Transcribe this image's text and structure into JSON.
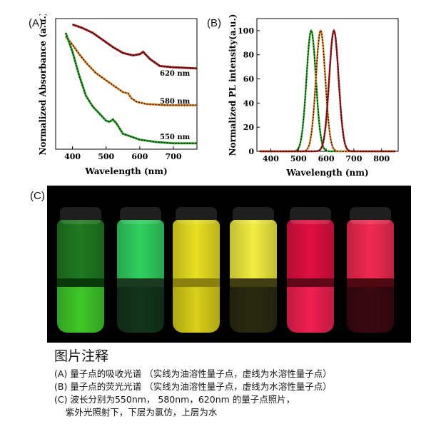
{
  "panels": {
    "a": "(A)",
    "b": "(B)",
    "c": "(C)"
  },
  "chart_data": [
    {
      "type": "line",
      "xlabel": "Wavelength (nm)",
      "ylabel": "Normalized Absorbance (a.u.)",
      "xlim": [
        350,
        770
      ],
      "xticks": [
        "400",
        "500",
        "600",
        "700"
      ],
      "annotations": [
        "620 nm",
        "580 nm",
        "550 nm"
      ],
      "series": [
        {
          "color": "#b01818",
          "x": [
            400,
            430,
            460,
            490,
            520,
            550,
            580,
            600,
            610,
            630,
            660,
            700,
            770
          ],
          "y": [
            1.05,
            1.02,
            0.98,
            0.92,
            0.86,
            0.81,
            0.79,
            0.8,
            0.82,
            0.76,
            0.7,
            0.69,
            0.68
          ]
        },
        {
          "color": "#f08a20",
          "x": [
            380,
            400,
            420,
            440,
            470,
            500,
            530,
            550,
            565,
            575,
            590,
            620,
            680,
            770
          ],
          "y": [
            0.95,
            0.88,
            0.8,
            0.73,
            0.64,
            0.58,
            0.52,
            0.48,
            0.47,
            0.43,
            0.4,
            0.38,
            0.37,
            0.37
          ]
        },
        {
          "color": "#22aa22",
          "x": [
            380,
            400,
            420,
            440,
            460,
            480,
            500,
            510,
            520,
            530,
            550,
            600,
            650,
            700,
            770
          ],
          "y": [
            0.98,
            0.82,
            0.62,
            0.45,
            0.36,
            0.3,
            0.24,
            0.23,
            0.25,
            0.22,
            0.13,
            0.08,
            0.06,
            0.05,
            0.05
          ]
        }
      ]
    },
    {
      "type": "line",
      "xlabel": "Wavelength (nm)",
      "ylabel": "Normalized PL intensity(a.u.)",
      "xlim": [
        350,
        860
      ],
      "ylim": [
        0,
        110
      ],
      "xticks": [
        "400",
        "500",
        "600",
        "700",
        "800"
      ],
      "yticks": [
        "0",
        "20",
        "40",
        "60",
        "80",
        "100"
      ],
      "series": [
        {
          "color": "#22bb22",
          "peak": 546,
          "width": 17,
          "height": 100
        },
        {
          "color": "#f08a20",
          "peak": 580,
          "width": 17,
          "height": 100
        },
        {
          "color": "#c01818",
          "peak": 628,
          "width": 17,
          "height": 100
        }
      ]
    }
  ],
  "photo": {
    "vials": [
      {
        "upper": "#1f7a20",
        "lower": "#3ec828",
        "band": "#0a3a0a"
      },
      {
        "upper": "#30d060",
        "lower": "#12351a",
        "band": "#1a3a20"
      },
      {
        "upper": "#e8e020",
        "lower": "#d8d018",
        "band": "#8a8010"
      },
      {
        "upper": "#f2ee40",
        "lower": "#2a2a10",
        "band": "#403d10"
      },
      {
        "upper": "#e01040",
        "lower": "#f02050",
        "band": "#600818"
      },
      {
        "upper": "#f02a50",
        "lower": "#3a0810",
        "band": "#500810"
      }
    ]
  },
  "notes": {
    "title": "图片注释",
    "a": "(A) 量子点的吸收光谱 （实线为油溶性量子点，虚线为水溶性量子点）",
    "b": "(B) 量子点的荧光光谱 （实线为油溶性量子点，虚线为水溶性量子点）",
    "c1": "(C) 波长分别为550nm， 580nm，620nm 的量子点照片，",
    "c2": "    紫外光照射下，下层为氯仿，上层为水"
  }
}
